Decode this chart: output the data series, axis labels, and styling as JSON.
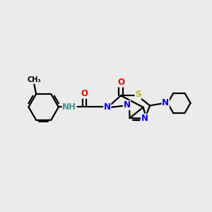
{
  "bg_color": "#ebebeb",
  "bond_color": "#000000",
  "bond_width": 1.6,
  "atom_colors": {
    "N": "#0000ee",
    "O": "#ee0000",
    "S": "#bbbb00",
    "H": "#4a9090",
    "C": "#000000"
  },
  "font_size": 8.5
}
